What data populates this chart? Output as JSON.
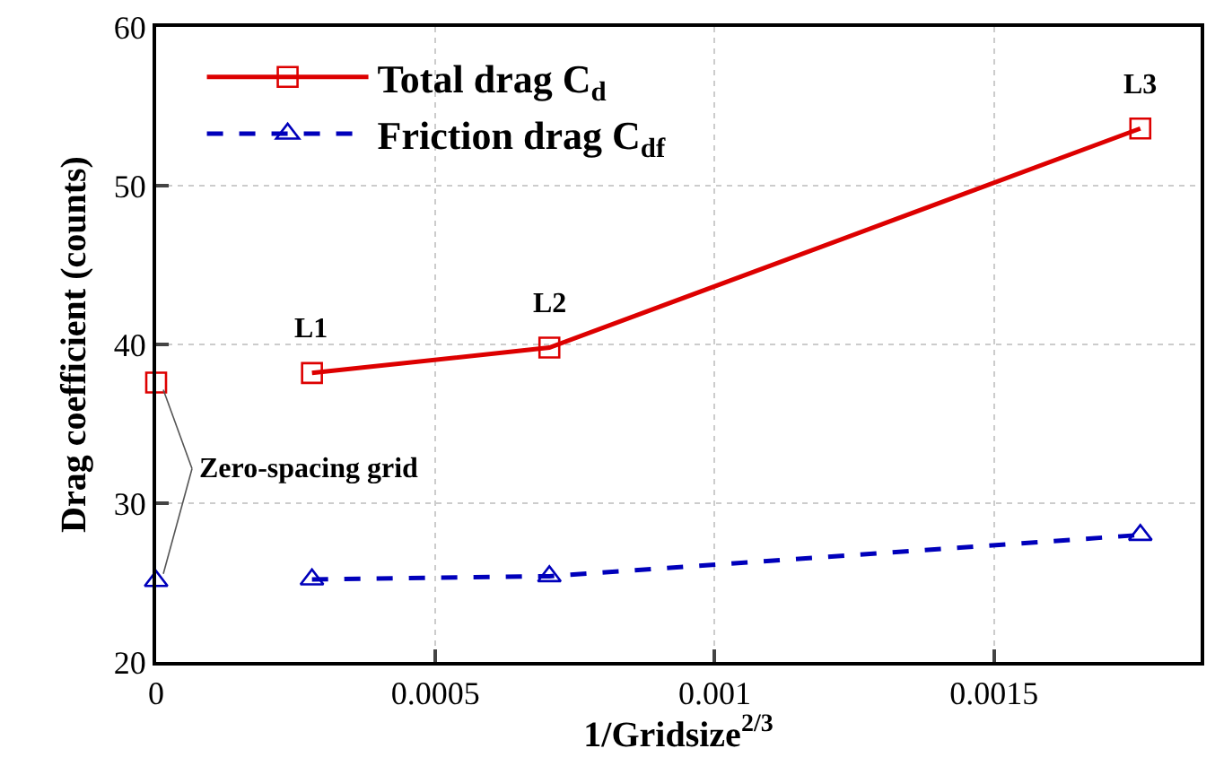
{
  "chart_data": {
    "type": "line",
    "xlabel": "1/Gridsize$^{2/3}$",
    "ylabel": "Drag coefficient (counts)",
    "series": [
      {
        "name": "Total drag C$_{d}$",
        "color": "#dd0000",
        "values": [
          38.2,
          39.8,
          53.6
        ],
        "marker": "square",
        "line_style": "solid",
        "x": [
          0.000279,
          0.000704,
          0.001762
        ]
      },
      {
        "name": "Friction drag C$_{df}$",
        "color": "#0000bb",
        "values": [
          25.2,
          25.4,
          28.0
        ],
        "marker": "triangle",
        "line_style": "dashed",
        "x": [
          0.000279,
          0.000704,
          0.001762
        ]
      },
      {
        "type": "scatter",
        "color": "#dd0000",
        "values": [
          37.6
        ],
        "marker": "square",
        "x": [
          0
        ]
      },
      {
        "type": "scatter",
        "color": "#0000bb",
        "values": [
          25.1
        ],
        "marker": "triangle",
        "x": [
          0
        ]
      }
    ],
    "annotations": [
      {
        "text": "L1",
        "x": 0.000279,
        "y": 38.2
      },
      {
        "text": "L2",
        "x": 0.000704,
        "y": 39.8
      },
      {
        "text": "L3",
        "x": 0.001762,
        "y": 53.6
      },
      {
        "text": "Zero-spacing grid",
        "x": 0,
        "y": 37.6
      }
    ],
    "xlim": [
      0,
      0.00187
    ],
    "xticks": [
      0,
      0.0005,
      0.001,
      0.0015
    ],
    "ylim": [
      20,
      60
    ],
    "yticks": [
      20,
      30,
      40,
      50,
      60
    ],
    "grid": true,
    "legend": "top left"
  }
}
